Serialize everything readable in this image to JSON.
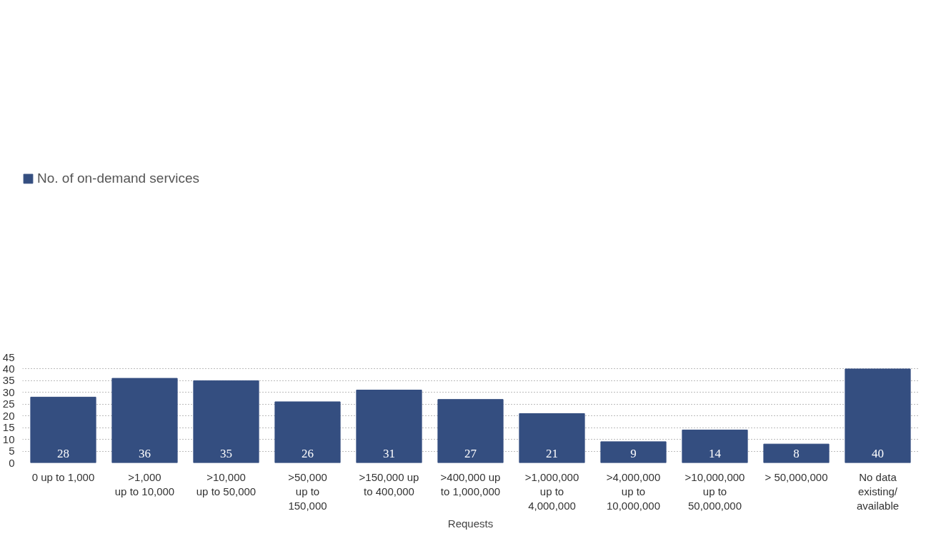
{
  "chart_data": {
    "type": "bar",
    "xlabel": "Requests",
    "categories": [
      "0 up to 1,000",
      ">1,000\nup to 10,000",
      ">10,000\nup to 50,000",
      ">50,000\nup to\n150,000",
      ">150,000 up\nto 400,000",
      ">400,000 up\nto 1,000,000",
      ">1,000,000\nup to\n4,000,000",
      ">4,000,000\nup to\n10,000,000",
      ">10,000,000\nup to\n50,000,000",
      "> 50,000,000",
      "No data\nexisting/\navailable"
    ],
    "series": [
      {
        "name": "No. of on-demand services",
        "color": "#344e80",
        "values": [
          28,
          36,
          35,
          26,
          31,
          27,
          21,
          9,
          14,
          8,
          40
        ]
      }
    ],
    "ylim": [
      0,
      45
    ],
    "yticks": [
      0,
      5,
      10,
      15,
      20,
      25,
      30,
      35,
      40,
      45
    ],
    "grid": "y",
    "legend": "top left",
    "data_labels": true
  }
}
